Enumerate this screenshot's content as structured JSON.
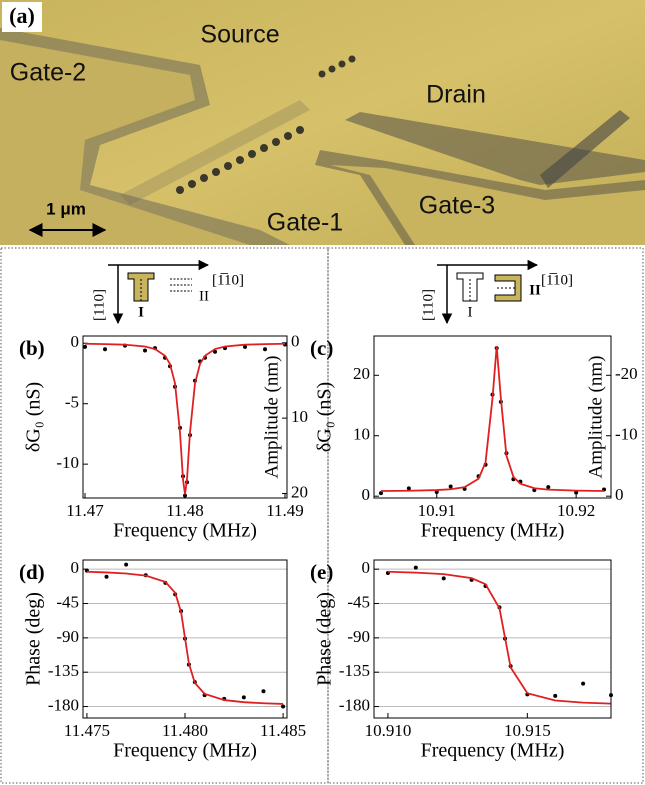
{
  "panel_a": {
    "label": "(a)",
    "source": "Source",
    "drain": "Drain",
    "gate1": "Gate-1",
    "gate2": "Gate-2",
    "gate3": "Gate-3",
    "scale": "1 μm"
  },
  "insets": [
    {
      "dir_down": "[110]",
      "dir_right": "[1̅10]",
      "mode1": "I",
      "mode2": "II"
    },
    {
      "dir_down": "[110]",
      "dir_right": "[1̅10]",
      "mode1": "I",
      "mode2": "II"
    }
  ],
  "chart_data": [
    {
      "type": "scatter",
      "label": "(b)",
      "xlabel": "Frequency (MHz)",
      "ylabel": "δG₀ (nS)",
      "y2label": "Amplitude (nm)",
      "x": [
        11.47,
        11.472,
        11.474,
        11.476,
        11.477,
        11.478,
        11.4785,
        11.479,
        11.4795,
        11.4798,
        11.48,
        11.4802,
        11.4805,
        11.481,
        11.4815,
        11.482,
        11.483,
        11.484,
        11.486,
        11.488,
        11.49
      ],
      "series": [
        {
          "mode": "markers",
          "color": "#000000",
          "values": [
            -0.3,
            -0.5,
            -0.2,
            -0.6,
            -0.4,
            -1.2,
            -1.9,
            -3.6,
            -7.0,
            -11.0,
            -12.6,
            -11.5,
            -7.6,
            -3.1,
            -1.5,
            -1.2,
            -0.7,
            -0.4,
            -0.3,
            -0.5,
            -0.1
          ]
        },
        {
          "mode": "line",
          "color": "#e02020",
          "values": [
            -0.04,
            -0.07,
            -0.12,
            -0.27,
            -0.48,
            -1.03,
            -1.72,
            -3.31,
            -7.38,
            -11.25,
            -12.5,
            -11.25,
            -7.38,
            -3.31,
            -1.72,
            -1.03,
            -0.48,
            -0.27,
            -0.12,
            -0.07,
            -0.04
          ]
        }
      ],
      "xlim": [
        11.4698,
        11.4902
      ],
      "xticks": [
        11.47,
        11.48,
        11.49
      ],
      "ylim": [
        -12.8,
        0.6
      ],
      "yticks": [
        0,
        -5,
        -10
      ],
      "y2lim": [
        20.6,
        -0.9
      ],
      "y2ticks": [
        0,
        10,
        20
      ],
      "grid": false
    },
    {
      "type": "scatter",
      "label": "(c)",
      "xlabel": "Frequency (MHz)",
      "ylabel": "δG₀ (nS)",
      "y2label": "Amplitude (nm)",
      "x": [
        10.906,
        10.908,
        10.91,
        10.911,
        10.912,
        10.913,
        10.9135,
        10.914,
        10.9143,
        10.9146,
        10.915,
        10.9155,
        10.916,
        10.917,
        10.918,
        10.92,
        10.922
      ],
      "series": [
        {
          "mode": "markers",
          "color": "#000000",
          "values": [
            0.5,
            1.3,
            0.7,
            1.6,
            1.2,
            3.3,
            5.2,
            16.8,
            24.5,
            15.6,
            7.1,
            2.8,
            2.4,
            1.0,
            1.5,
            0.6,
            1.1
          ]
        },
        {
          "mode": "line",
          "color": "#e02020",
          "values": [
            0.86,
            0.9,
            1.01,
            1.15,
            1.5,
            2.88,
            5.6,
            16.2,
            24.8,
            16.2,
            6.7,
            3.2,
            2.06,
            1.32,
            1.08,
            0.92,
            0.86
          ]
        }
      ],
      "xlim": [
        10.9055,
        10.9225
      ],
      "xticks": [
        10.91,
        10.92
      ],
      "ylim": [
        -0.3,
        26.5
      ],
      "yticks": [
        0,
        10,
        20
      ],
      "y2lim": [
        0.3,
        -26.5
      ],
      "y2ticks": [
        0,
        -10,
        -20
      ],
      "grid": false
    },
    {
      "type": "scatter",
      "label": "(d)",
      "xlabel": "Frequency (MHz)",
      "ylabel": "Phase (deg)",
      "x": [
        11.475,
        11.476,
        11.477,
        11.478,
        11.479,
        11.4795,
        11.4798,
        11.48,
        11.4802,
        11.4805,
        11.481,
        11.482,
        11.483,
        11.484,
        11.485
      ],
      "series": [
        {
          "mode": "markers",
          "color": "#000000",
          "values": [
            -2,
            -10,
            6,
            -8,
            -18,
            -33,
            -55,
            -91,
            -125,
            -148,
            -165,
            -170,
            -168,
            -160,
            -180
          ]
        },
        {
          "mode": "line",
          "color": "#e02020",
          "values": [
            -3.4,
            -4.3,
            -5.7,
            -8.5,
            -16.7,
            -31,
            -56.3,
            -90,
            -123.7,
            -149,
            -163.3,
            -171.5,
            -174.3,
            -175.7,
            -176.6
          ]
        }
      ],
      "xlim": [
        11.4748,
        11.4852
      ],
      "xticks": [
        11.475,
        {
          "value": 11.48,
          "label": "11.480"
        },
        11.485
      ],
      "ylim": [
        -195,
        12
      ],
      "yticks": [
        0,
        -45,
        -90,
        -135,
        -180
      ],
      "grid": true
    },
    {
      "type": "scatter",
      "label": "(e)",
      "xlabel": "Frequency (MHz)",
      "ylabel": "Phase (deg)",
      "x": [
        10.91,
        10.911,
        10.912,
        10.913,
        10.9135,
        10.914,
        10.9142,
        10.9144,
        10.915,
        10.916,
        10.917,
        10.918
      ],
      "series": [
        {
          "mode": "markers",
          "color": "#000000",
          "values": [
            -5,
            2,
            -12,
            -14,
            -22,
            -50,
            -91,
            -127,
            -164,
            -166,
            -150,
            -165
          ]
        },
        {
          "mode": "line",
          "color": "#e02020",
          "values": [
            -3.4,
            -4.5,
            -6.5,
            -11.8,
            -19.7,
            -51.3,
            -90,
            -128.7,
            -162.6,
            -172.1,
            -174.9,
            -176.2
          ]
        }
      ],
      "xlim": [
        10.9095,
        10.918
      ],
      "xticks": [
        {
          "value": 10.91,
          "label": "10.910"
        },
        10.915
      ],
      "ylim": [
        -195,
        12
      ],
      "yticks": [
        0,
        -45,
        -90,
        -135,
        -180
      ],
      "grid": true
    }
  ]
}
